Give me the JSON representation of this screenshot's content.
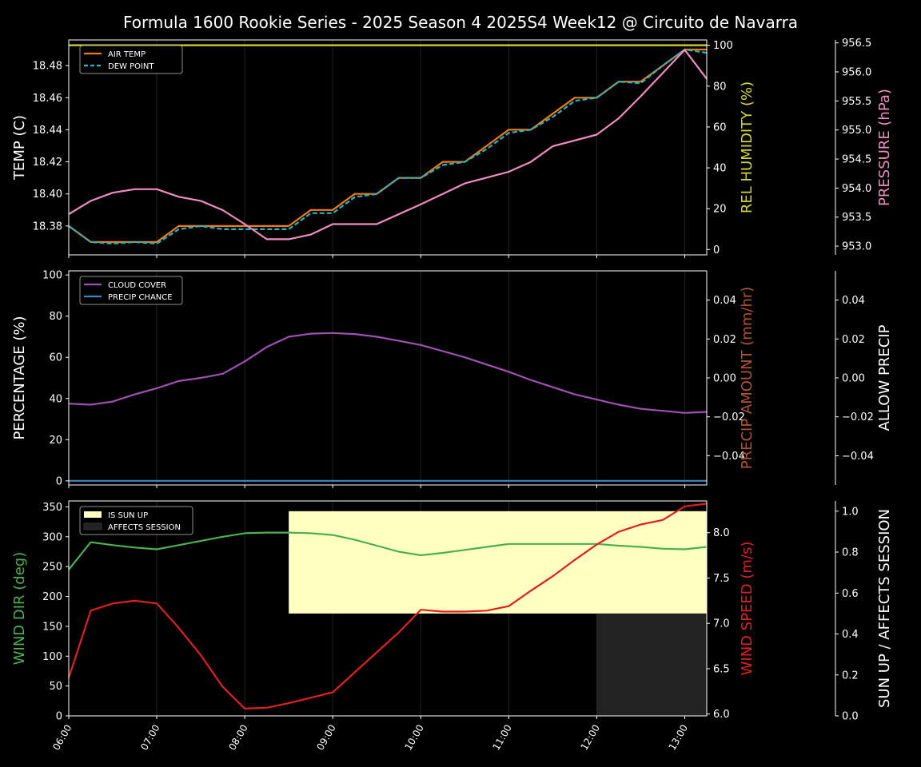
{
  "title": "Formula 1600 Rookie Series - 2025 Season 4 2025S4 Week12 @ Circuito de Navarra",
  "colors": {
    "air_temp": "#f07b12",
    "dew_point": "#1fb7c9",
    "humidity": "#d6d62c",
    "pressure": "#f08cc0",
    "cloud": "#a04fb2",
    "precip_chance": "#3f86c6",
    "wind_dir": "#4caf50",
    "wind_speed": "#e0201e",
    "sun_up": "#ffffc2",
    "affects": "#222222",
    "precip_amount_label": "#b3542e"
  },
  "x_ticks": [
    "06:00",
    "07:00",
    "08:00",
    "09:00",
    "10:00",
    "11:00",
    "12:00",
    "13:00"
  ],
  "chart_data": [
    {
      "type": "line",
      "panel": "temperature",
      "x": [
        "06:00",
        "06:15",
        "06:30",
        "06:45",
        "07:00",
        "07:15",
        "07:30",
        "07:45",
        "08:00",
        "08:15",
        "08:30",
        "08:45",
        "09:00",
        "09:15",
        "09:30",
        "09:45",
        "10:00",
        "10:15",
        "10:30",
        "10:45",
        "11:00",
        "11:15",
        "11:30",
        "11:45",
        "12:00",
        "12:15",
        "12:30",
        "12:45",
        "13:00",
        "13:15"
      ],
      "ylabel": "TEMP (C)",
      "ylim": [
        18.362,
        18.496
      ],
      "yticks": [
        "18.38",
        "18.40",
        "18.42",
        "18.44",
        "18.46",
        "18.48"
      ],
      "y2label": "REL HUMIDITY (%)",
      "y2lim": [
        -2.6,
        102.6
      ],
      "y2ticks": [
        "0",
        "20",
        "40",
        "60",
        "80",
        "100"
      ],
      "y3label": "PRESSURE (hPa)",
      "y3lim": [
        952.85,
        956.55
      ],
      "y3ticks": [
        "953.0",
        "953.5",
        "954.0",
        "954.5",
        "955.0",
        "955.5",
        "956.0",
        "956.5"
      ],
      "legend": [
        "AIR TEMP",
        "DEW POINT"
      ],
      "legend_position": "top-left",
      "series": [
        {
          "name": "AIR TEMP",
          "axis": "y",
          "values": [
            18.38,
            18.37,
            18.37,
            18.37,
            18.37,
            18.38,
            18.38,
            18.38,
            18.38,
            18.38,
            18.38,
            18.39,
            18.39,
            18.4,
            18.4,
            18.41,
            18.41,
            18.42,
            18.42,
            18.43,
            18.44,
            18.44,
            18.45,
            18.46,
            18.46,
            18.47,
            18.47,
            18.48,
            18.49,
            18.49
          ]
        },
        {
          "name": "DEW POINT",
          "axis": "y",
          "values": [
            18.38,
            18.37,
            18.369,
            18.37,
            18.369,
            18.378,
            18.38,
            18.378,
            18.378,
            18.378,
            18.378,
            18.388,
            18.388,
            18.398,
            18.4,
            18.41,
            18.41,
            18.418,
            18.42,
            18.428,
            18.438,
            18.44,
            18.448,
            18.458,
            18.46,
            18.47,
            18.469,
            18.48,
            18.49,
            18.488
          ]
        },
        {
          "name": "REL HUMIDITY",
          "axis": "y2",
          "values": [
            100,
            100,
            100,
            100,
            100,
            100,
            100,
            100,
            100,
            100,
            100,
            100,
            100,
            100,
            100,
            100,
            100,
            100,
            100,
            100,
            100,
            100,
            100,
            100,
            100,
            100,
            100,
            100,
            100,
            100
          ]
        },
        {
          "name": "PRESSURE",
          "axis": "y3",
          "values": [
            953.55,
            953.78,
            953.92,
            953.98,
            953.98,
            953.85,
            953.78,
            953.62,
            953.38,
            953.12,
            953.12,
            953.2,
            953.38,
            953.38,
            953.38,
            953.55,
            953.72,
            953.9,
            954.08,
            954.18,
            954.28,
            954.45,
            954.72,
            954.82,
            954.92,
            955.2,
            955.58,
            955.98,
            956.38,
            955.88
          ]
        }
      ]
    },
    {
      "type": "line",
      "panel": "precipitation",
      "x": [
        "06:00",
        "06:15",
        "06:30",
        "06:45",
        "07:00",
        "07:15",
        "07:30",
        "07:45",
        "08:00",
        "08:15",
        "08:30",
        "08:45",
        "09:00",
        "09:15",
        "09:30",
        "09:45",
        "10:00",
        "10:15",
        "10:30",
        "10:45",
        "11:00",
        "11:15",
        "11:30",
        "11:45",
        "12:00",
        "12:15",
        "12:30",
        "12:45",
        "13:00",
        "13:15"
      ],
      "ylabel": "PERCENTAGE (%)",
      "ylim": [
        -2,
        102
      ],
      "yticks": [
        "0",
        "20",
        "40",
        "60",
        "80",
        "100"
      ],
      "y2label": "PRECIP AMOUNT (mm/hr)",
      "y2lim": [
        -0.055,
        0.055
      ],
      "y2ticks": [
        "−0.04",
        "−0.02",
        "0.00",
        "0.02",
        "0.04"
      ],
      "y3label": "ALLOW PRECIP",
      "y3lim": [
        -0.055,
        0.055
      ],
      "y3ticks": [
        "−0.04",
        "−0.02",
        "0.00",
        "0.02",
        "0.04"
      ],
      "legend": [
        "CLOUD COVER",
        "PRECIP CHANCE"
      ],
      "legend_position": "top-left",
      "series": [
        {
          "name": "CLOUD COVER",
          "axis": "y",
          "values": [
            37.5,
            37,
            38.5,
            42,
            45,
            48.5,
            50,
            52,
            58,
            65,
            70,
            71.5,
            71.8,
            71.3,
            70,
            68,
            66,
            63,
            60,
            56.5,
            53,
            49,
            45.5,
            42,
            39.5,
            37,
            35,
            34,
            33,
            33.5
          ]
        },
        {
          "name": "PRECIP CHANCE",
          "axis": "y",
          "values": [
            0,
            0,
            0,
            0,
            0,
            0,
            0,
            0,
            0,
            0,
            0,
            0,
            0,
            0,
            0,
            0,
            0,
            0,
            0,
            0,
            0,
            0,
            0,
            0,
            0,
            0,
            0,
            0,
            0,
            0
          ]
        }
      ]
    },
    {
      "type": "line",
      "panel": "wind",
      "x": [
        "06:00",
        "06:15",
        "06:30",
        "06:45",
        "07:00",
        "07:15",
        "07:30",
        "07:45",
        "08:00",
        "08:15",
        "08:30",
        "08:45",
        "09:00",
        "09:15",
        "09:30",
        "09:45",
        "10:00",
        "10:15",
        "10:30",
        "10:45",
        "11:00",
        "11:15",
        "11:30",
        "11:45",
        "12:00",
        "12:15",
        "12:30",
        "12:45",
        "13:00",
        "13:15"
      ],
      "ylabel": "WIND DIR (deg)",
      "ylim": [
        0,
        360
      ],
      "yticks": [
        "0",
        "50",
        "100",
        "150",
        "200",
        "250",
        "300",
        "350"
      ],
      "y2label": "WIND SPEED (m/s)",
      "y2lim": [
        5.98,
        8.35
      ],
      "y2ticks": [
        "6.0",
        "6.5",
        "7.0",
        "7.5",
        "8.0"
      ],
      "y3label": "SUN UP / AFFECTS SESSION",
      "y3lim": [
        0,
        1.05
      ],
      "y3ticks": [
        "0.0",
        "0.2",
        "0.4",
        "0.6",
        "0.8",
        "1.0"
      ],
      "legend": [
        "IS SUN UP",
        "AFFECTS SESSION"
      ],
      "legend_position": "top-left",
      "series": [
        {
          "name": "WIND DIR",
          "axis": "y",
          "values": [
            245,
            291,
            286,
            282,
            279,
            286,
            293,
            300,
            306,
            307,
            307,
            306,
            303,
            295,
            285,
            275,
            269,
            273,
            278,
            283,
            288,
            288,
            288,
            288,
            288,
            285,
            283,
            280,
            279,
            283
          ]
        },
        {
          "name": "WIND SPEED",
          "axis": "y2",
          "values": [
            6.4,
            7.14,
            7.22,
            7.25,
            7.22,
            6.95,
            6.65,
            6.3,
            6.06,
            6.07,
            6.12,
            6.18,
            6.24,
            6.46,
            6.68,
            6.9,
            7.15,
            7.13,
            7.13,
            7.14,
            7.19,
            7.36,
            7.52,
            7.7,
            7.87,
            8.01,
            8.09,
            8.14,
            8.29,
            8.32
          ]
        }
      ],
      "bands": [
        {
          "name": "IS SUN UP",
          "x_start": "08:30",
          "x_end": "13:15",
          "value": 0.5
        },
        {
          "name": "AFFECTS SESSION",
          "x_start": "12:00",
          "x_end": "13:15",
          "value": 0.5
        }
      ]
    }
  ]
}
